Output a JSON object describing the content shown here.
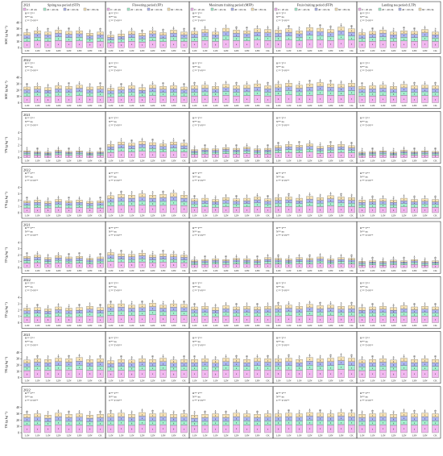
{
  "colors": {
    "d0_20": "#f2b8f0",
    "d20_40": "#a6f0cf",
    "d40_60": "#aeb7f2",
    "d60_80": "#f6e2b6",
    "border": "#333333"
  },
  "legend": [
    "0 ~ 20 cm",
    "20 ~ 40 cm",
    "40 ~ 60 cm",
    "60 ~ 80 cm"
  ],
  "chart_data": {
    "type": "bar",
    "stacked": true,
    "periods": [
      "Spring tea period (STP)",
      "Flowering period (FP)",
      "Maximum fruiting period (MFP)",
      "Fruit-fruiting period (FFP)",
      "Landing tea period (LTP)"
    ],
    "categories": [
      "L1N",
      "L1N",
      "L1N",
      "L2N",
      "L2N",
      "L3N",
      "L3N",
      "CK"
    ],
    "series": [
      "0 ~ 20 cm",
      "20 ~ 40 cm",
      "40 ~ 60 cm",
      "60 ~ 80 cm"
    ],
    "rows": [
      {
        "year": "2021",
        "ylabel": "SOC (g kg⁻¹)",
        "yticks": [
          "40",
          "30",
          "20",
          "10",
          "0"
        ],
        "ymax": 40,
        "stat_text": [
          "R** T**",
          "N** ns",
          "C** T×N**"
        ],
        "panels": [
          {
            "totals": [
              24,
              27,
              25,
              28,
              26,
              27,
              23,
              25
            ],
            "letters": [
              "ab",
              "a",
              "ab",
              "a",
              "ab",
              "a",
              "b",
              "ab"
            ]
          },
          {
            "totals": [
              20,
              22,
              26,
              23,
              27,
              24,
              28,
              25
            ],
            "letters": [
              "ab",
              "b",
              "a",
              "ab",
              "a",
              "ab",
              "a",
              "ab"
            ]
          },
          {
            "totals": [
              26,
              29,
              25,
              31,
              28,
              27,
              30,
              29
            ],
            "letters": [
              "ab",
              "a",
              "b",
              "a",
              "ab",
              "ab",
              "a",
              "a"
            ]
          },
          {
            "totals": [
              28,
              30,
              27,
              32,
              31,
              29,
              33,
              30
            ],
            "letters": [
              "b",
              "ab",
              "b",
              "a",
              "ab",
              "ab",
              "a",
              "ab"
            ]
          },
          {
            "totals": [
              24,
              26,
              28,
              25,
              27,
              26,
              29,
              25
            ],
            "letters": [
              "b",
              "ab",
              "a",
              "b",
              "ab",
              "ab",
              "a",
              "b"
            ]
          }
        ]
      },
      {
        "year": "2022",
        "ylabel": "SOC (g kg⁻¹)",
        "yticks": [
          "40",
          "30",
          "20",
          "10",
          "0"
        ],
        "ymax": 40,
        "stat_text": [
          "R** T**",
          "N** ns",
          "C** T×N**"
        ],
        "panels": [
          {
            "totals": [
              25,
              26,
              24,
              27,
              26,
              28,
              25,
              26
            ],
            "letters": [
              "ab",
              "a",
              "b",
              "a",
              "ab",
              "a",
              "b",
              "ab"
            ]
          },
          {
            "totals": [
              23,
              25,
              27,
              24,
              28,
              26,
              27,
              25
            ],
            "letters": [
              "b",
              "ab",
              "a",
              "b",
              "a",
              "ab",
              "a",
              "ab"
            ]
          },
          {
            "totals": [
              27,
              28,
              26,
              29,
              27,
              28,
              30,
              27
            ],
            "letters": [
              "ab",
              "a",
              "b",
              "a",
              "ab",
              "a",
              "a",
              "ab"
            ]
          },
          {
            "totals": [
              29,
              31,
              28,
              30,
              32,
              30,
              29,
              31
            ],
            "letters": [
              "b",
              "a",
              "b",
              "ab",
              "a",
              "ab",
              "b",
              "a"
            ]
          },
          {
            "totals": [
              26,
              27,
              28,
              26,
              29,
              27,
              28,
              27
            ],
            "letters": [
              "ab",
              "a",
              "a",
              "b",
              "a",
              "ab",
              "a",
              "ab"
            ]
          }
        ]
      },
      {
        "year": "2021",
        "ylabel": "TN (g kg⁻¹)",
        "yticks": [
          "4",
          "3",
          "2",
          "1",
          "0"
        ],
        "ymax": 4,
        "stat_text": [
          "R** T**",
          "N** ns",
          "C** T×N**"
        ],
        "panels": [
          {
            "totals": [
              1.1,
              1.0,
              0.9,
              1.2,
              1.0,
              1.1,
              0.9,
              1.0
            ],
            "letters": [
              "a",
              "ab",
              "b",
              "a",
              "ab",
              "a",
              "b",
              "ab"
            ]
          },
          {
            "totals": [
              2.1,
              2.5,
              2.3,
              2.6,
              2.4,
              2.2,
              2.5,
              2.3
            ],
            "letters": [
              "b",
              "a",
              "ab",
              "a",
              "ab",
              "b",
              "a",
              "ab"
            ]
          },
          {
            "totals": [
              1.3,
              1.5,
              1.4,
              1.6,
              1.5,
              1.7,
              1.4,
              1.5
            ],
            "letters": [
              "b",
              "ab",
              "b",
              "a",
              "ab",
              "a",
              "b",
              "ab"
            ]
          },
          {
            "totals": [
              1.9,
              2.1,
              2.0,
              2.2,
              1.8,
              2.0,
              2.1,
              1.9
            ],
            "letters": [
              "ab",
              "a",
              "ab",
              "a",
              "b",
              "ab",
              "a",
              "ab"
            ]
          },
          {
            "totals": [
              0.9,
              1.0,
              1.1,
              0.9,
              1.2,
              1.0,
              1.1,
              1.0
            ],
            "letters": [
              "b",
              "ab",
              "a",
              "b",
              "a",
              "ab",
              "a",
              "ab"
            ]
          }
        ]
      },
      {
        "year": "2022",
        "ylabel": "TN (g kg⁻¹)",
        "yticks": [
          "4",
          "3",
          "2",
          "1",
          "0"
        ],
        "ymax": 4,
        "stat_text": [
          "R** T**",
          "N** ns",
          "C** T×N**"
        ],
        "panels": [
          {
            "totals": [
              1.9,
              2.0,
              1.8,
              2.1,
              1.9,
              2.0,
              1.8,
              1.9
            ],
            "letters": [
              "ab",
              "a",
              "b",
              "a",
              "ab",
              "a",
              "b",
              "ab"
            ]
          },
          {
            "totals": [
              2.7,
              2.9,
              2.8,
              3.0,
              2.8,
              2.9,
              3.1,
              2.8
            ],
            "letters": [
              "b",
              "ab",
              "b",
              "a",
              "b",
              "ab",
              "a",
              "b"
            ]
          },
          {
            "totals": [
              2.2,
              2.3,
              2.1,
              2.4,
              2.2,
              2.3,
              2.5,
              2.2
            ],
            "letters": [
              "ab",
              "a",
              "b",
              "a",
              "ab",
              "a",
              "a",
              "ab"
            ]
          },
          {
            "totals": [
              2.4,
              2.5,
              2.3,
              2.6,
              2.4,
              2.7,
              2.5,
              2.4
            ],
            "letters": [
              "b",
              "ab",
              "b",
              "a",
              "b",
              "a",
              "ab",
              "b"
            ]
          },
          {
            "totals": [
              2.0,
              2.1,
              2.2,
              2.0,
              2.3,
              2.1,
              2.2,
              2.1
            ],
            "letters": [
              "b",
              "ab",
              "a",
              "b",
              "a",
              "ab",
              "a",
              "ab"
            ]
          }
        ]
      },
      {
        "year": "2021",
        "ylabel": "TP (g kg⁻¹)",
        "yticks": [
          "4",
          "3",
          "2",
          "1",
          "0"
        ],
        "ymax": 4,
        "stat_text": [
          "R** T**",
          "N** ns",
          "C** T×N**"
        ],
        "panels": [
          {
            "totals": [
              1.8,
              2.0,
              1.6,
              1.9,
              1.7,
              1.8,
              1.5,
              1.7
            ],
            "letters": [
              "ab",
              "a",
              "b",
              "a",
              "ab",
              "ab",
              "b",
              "ab"
            ]
          },
          {
            "totals": [
              2.4,
              2.2,
              2.1,
              2.3,
              2.0,
              2.2,
              2.1,
              2.0
            ],
            "letters": [
              "a",
              "ab",
              "b",
              "a",
              "b",
              "ab",
              "b",
              "b"
            ]
          },
          {
            "totals": [
              1.2,
              1.3,
              1.4,
              1.3,
              1.5,
              1.4,
              1.3,
              1.6
            ],
            "letters": [
              "b",
              "ab",
              "a",
              "ab",
              "a",
              "a",
              "ab",
              "a"
            ]
          },
          {
            "totals": [
              1.5,
              1.4,
              1.6,
              1.5,
              1.7,
              1.4,
              1.6,
              1.5
            ],
            "letters": [
              "ab",
              "b",
              "a",
              "ab",
              "a",
              "b",
              "a",
              "ab"
            ]
          },
          {
            "totals": [
              1.0,
              1.1,
              1.0,
              1.2,
              1.1,
              1.3,
              1.0,
              1.1
            ],
            "letters": [
              "b",
              "ab",
              "b",
              "a",
              "ab",
              "a",
              "b",
              "ab"
            ]
          }
        ]
      },
      {
        "year": "2022",
        "ylabel": "TP (g kg⁻¹)",
        "yticks": [
          "4",
          "3",
          "2",
          "1",
          "0"
        ],
        "ymax": 4,
        "stat_text": [
          "R** T**",
          "N** ns",
          "C** T×N**"
        ],
        "panels": [
          {
            "totals": [
              2.3,
              2.4,
              2.2,
              2.5,
              2.3,
              2.4,
              2.6,
              2.4
            ],
            "letters": [
              "b",
              "ab",
              "b",
              "a",
              "b",
              "ab",
              "a",
              "ab"
            ]
          },
          {
            "totals": [
              2.9,
              3.0,
              2.8,
              2.9,
              3.1,
              2.8,
              3.0,
              2.9
            ],
            "letters": [
              "ab",
              "a",
              "b",
              "ab",
              "a",
              "b",
              "a",
              "ab"
            ]
          },
          {
            "totals": [
              2.5,
              2.6,
              2.4,
              2.7,
              2.5,
              2.6,
              2.5,
              2.6
            ],
            "letters": [
              "ab",
              "a",
              "b",
              "a",
              "ab",
              "a",
              "ab",
              "a"
            ]
          },
          {
            "totals": [
              2.7,
              2.8,
              2.6,
              2.9,
              2.7,
              2.8,
              2.6,
              2.7
            ],
            "letters": [
              "ab",
              "a",
              "b",
              "a",
              "ab",
              "a",
              "b",
              "ab"
            ]
          },
          {
            "totals": [
              2.4,
              2.5,
              2.6,
              2.4,
              2.7,
              2.5,
              2.6,
              2.5
            ],
            "letters": [
              "b",
              "ab",
              "a",
              "b",
              "a",
              "ab",
              "a",
              "ab"
            ]
          }
        ]
      },
      {
        "year": "2021",
        "ylabel": "TK (g kg⁻¹)",
        "yticks": [
          "40",
          "30",
          "20",
          "10",
          "0"
        ],
        "ymax": 40,
        "stat_text": [
          "R** T**",
          "N** ns",
          "C** T×N**"
        ],
        "panels": [
          {
            "totals": [
              28,
              30,
              29,
              31,
              30,
              32,
              29,
              30
            ],
            "letters": [
              "b",
              "ab",
              "b",
              "a",
              "ab",
              "a",
              "b",
              "ab"
            ]
          },
          {
            "totals": [
              27,
              29,
              28,
              30,
              29,
              31,
              28,
              29
            ],
            "letters": [
              "b",
              "ab",
              "b",
              "a",
              "ab",
              "a",
              "b",
              "ab"
            ]
          },
          {
            "totals": [
              29,
              30,
              28,
              31,
              30,
              29,
              31,
              30
            ],
            "letters": [
              "ab",
              "a",
              "b",
              "a",
              "ab",
              "ab",
              "a",
              "ab"
            ]
          },
          {
            "totals": [
              30,
              31,
              29,
              32,
              30,
              31,
              33,
              31
            ],
            "letters": [
              "b",
              "ab",
              "b",
              "a",
              "b",
              "ab",
              "a",
              "ab"
            ]
          },
          {
            "totals": [
              28,
              29,
              30,
              28,
              31,
              29,
              30,
              29
            ],
            "letters": [
              "b",
              "ab",
              "a",
              "b",
              "a",
              "ab",
              "a",
              "ab"
            ]
          }
        ]
      },
      {
        "year": "2022",
        "ylabel": "TK (g kg⁻¹)",
        "yticks": [
          "40",
          "30",
          "20",
          "10",
          "0"
        ],
        "ymax": 40,
        "stat_text": [
          "R** T**",
          "N** ns",
          "C** T×N**"
        ],
        "panels": [
          {
            "totals": [
              29,
              30,
              28,
              31,
              29,
              30,
              28,
              29
            ],
            "letters": [
              "ab",
              "a",
              "b",
              "a",
              "ab",
              "a",
              "b",
              "ab"
            ]
          },
          {
            "totals": [
              30,
              31,
              29,
              32,
              30,
              31,
              29,
              30
            ],
            "letters": [
              "ab",
              "a",
              "b",
              "a",
              "ab",
              "a",
              "b",
              "ab"
            ]
          },
          {
            "totals": [
              28,
              29,
              30,
              29,
              31,
              30,
              29,
              30
            ],
            "letters": [
              "b",
              "ab",
              "a",
              "ab",
              "a",
              "a",
              "ab",
              "a"
            ]
          },
          {
            "totals": [
              30,
              31,
              30,
              32,
              31,
              30,
              32,
              31
            ],
            "letters": [
              "b",
              "ab",
              "b",
              "a",
              "ab",
              "b",
              "a",
              "ab"
            ]
          },
          {
            "totals": [
              29,
              30,
              31,
              29,
              32,
              30,
              31,
              30
            ],
            "letters": [
              "b",
              "ab",
              "a",
              "b",
              "a",
              "ab",
              "a",
              "ab"
            ]
          }
        ]
      }
    ]
  }
}
